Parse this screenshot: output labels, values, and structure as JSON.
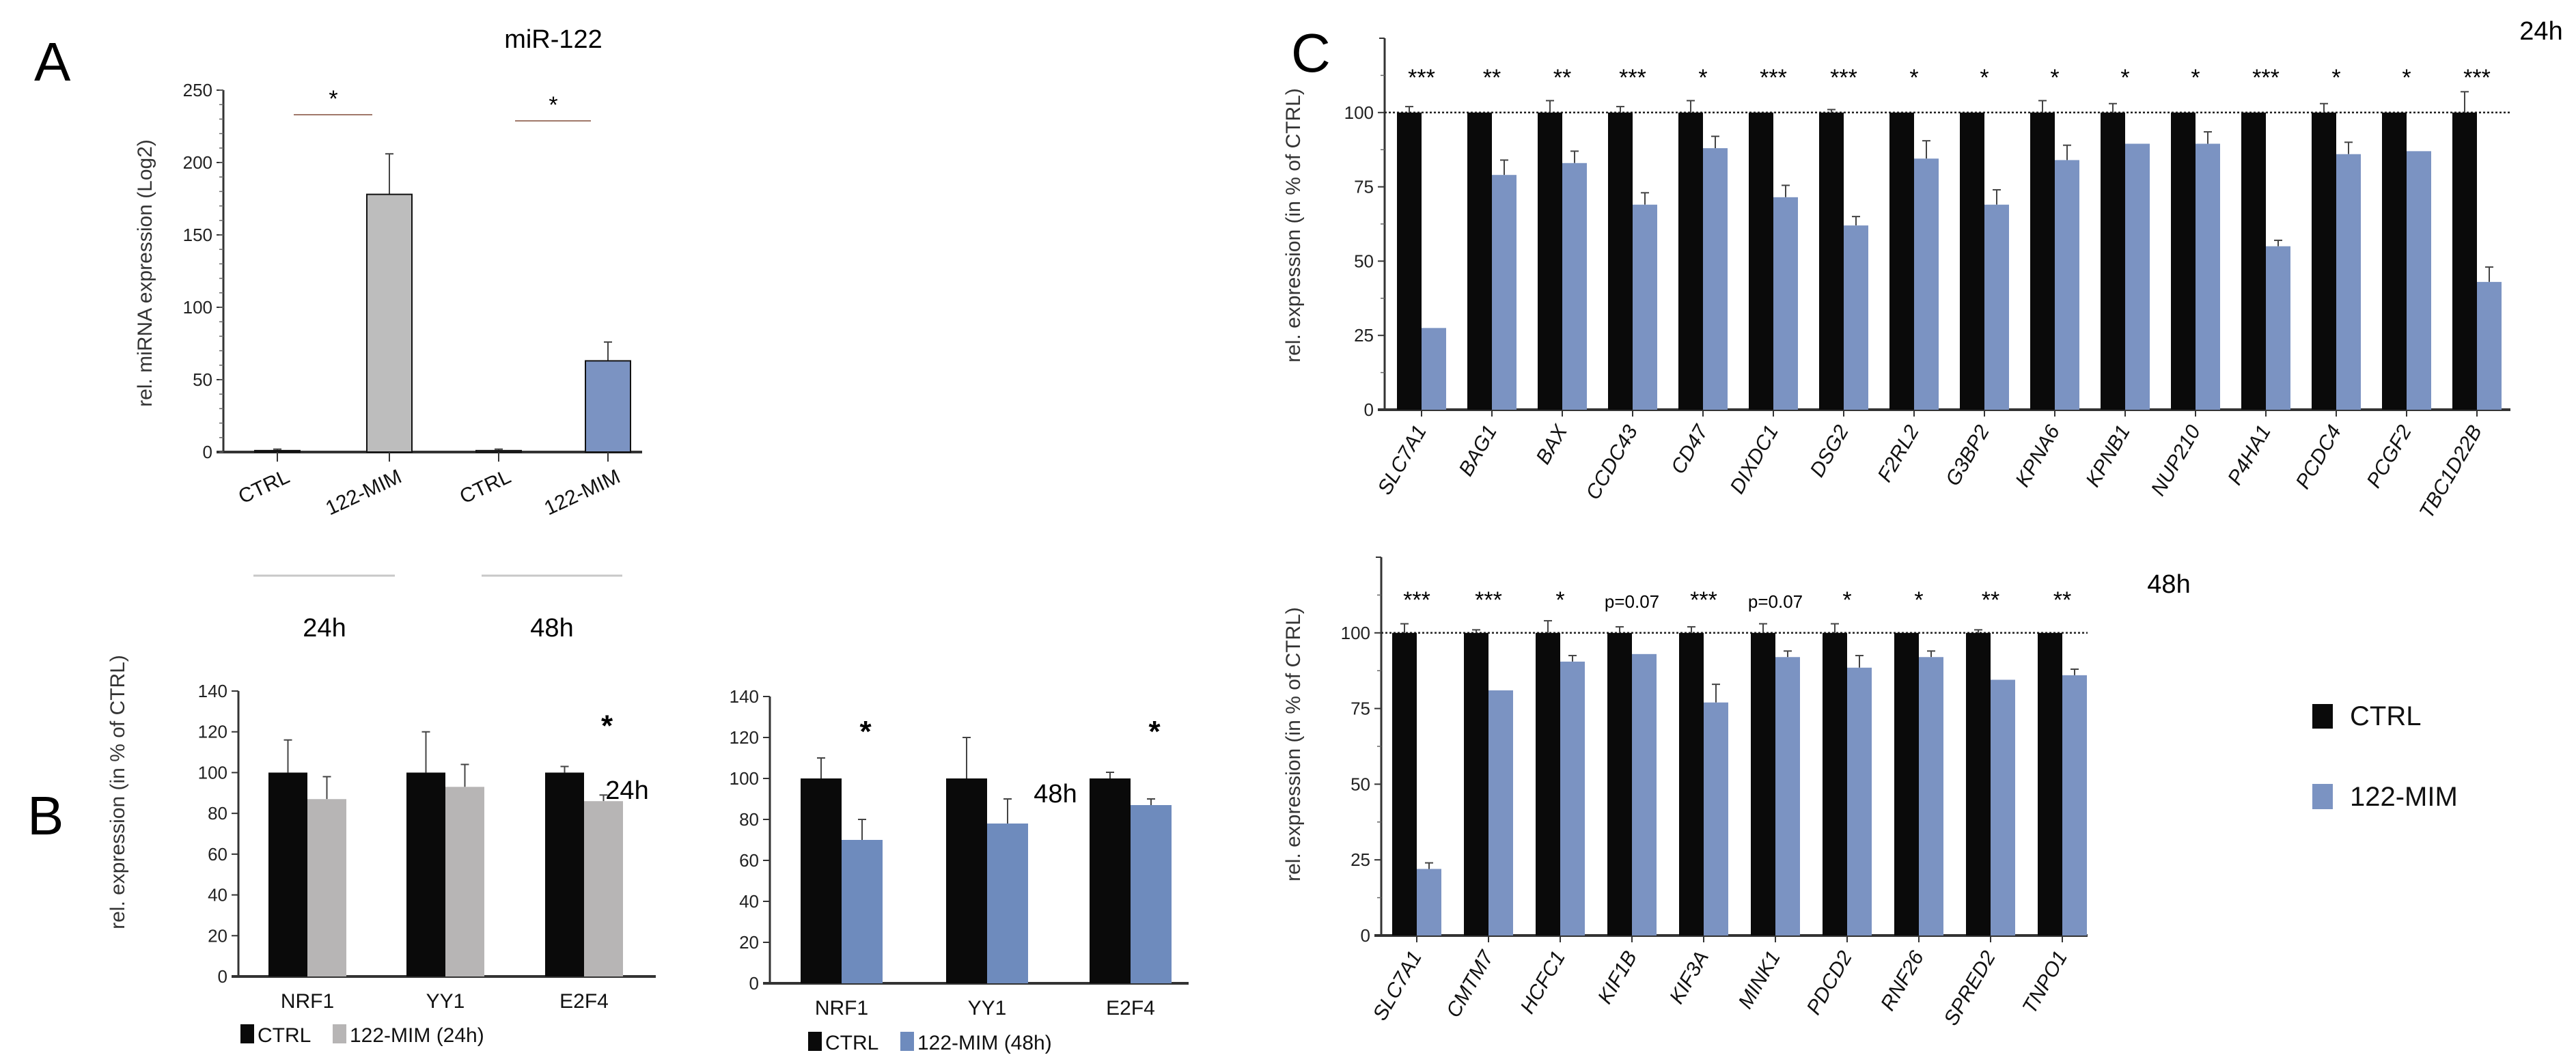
{
  "panels": {
    "a": "A",
    "b": "B",
    "c": "C"
  },
  "panel_a_groups": [
    "24h",
    "48h"
  ],
  "legend_c": {
    "ctrl": "CTRL",
    "mim": "122-MIM"
  },
  "colors": {
    "ctrl": "#0a0a0a",
    "mim_24h_gray": "#b7b5b5",
    "mim_blue": "#7b93c2"
  },
  "chart_data": [
    {
      "id": "A",
      "type": "bar",
      "title": "miR-122",
      "ylabel": "rel. miRNA expression (Log2)",
      "ylim": [
        0,
        250
      ],
      "yticks": [
        0,
        50,
        100,
        150,
        200,
        250
      ],
      "categories": [
        "CTRL",
        "122-MIM",
        "CTRL",
        "122-MIM"
      ],
      "values": [
        1,
        178,
        1,
        63
      ],
      "errors": [
        1,
        28,
        1,
        13
      ],
      "bar_colors": [
        "#0a0a0a",
        "#bdbdbd",
        "#bdbdbd",
        "#7b93c2"
      ],
      "significance": [
        {
          "between": [
            0,
            1
          ],
          "label": "*"
        },
        {
          "between": [
            2,
            3
          ],
          "label": "*"
        }
      ]
    },
    {
      "id": "B-24h",
      "type": "bar",
      "title": "24h",
      "ylabel": "rel. expression (in % of CTRL)",
      "ylim": [
        0,
        140
      ],
      "yticks": [
        0,
        20,
        40,
        60,
        80,
        100,
        120,
        140
      ],
      "categories": [
        "NRF1",
        "YY1",
        "E2F4"
      ],
      "series": [
        {
          "name": "CTRL",
          "values": [
            100,
            100,
            100
          ],
          "errors": [
            16,
            20,
            3
          ],
          "color": "#0a0a0a"
        },
        {
          "name": "122-MIM (24h)",
          "values": [
            87,
            93,
            86
          ],
          "errors": [
            11,
            11,
            3
          ],
          "color": "#b7b5b5"
        }
      ],
      "significance": [
        "",
        "",
        "*"
      ],
      "legend": "bottom"
    },
    {
      "id": "B-48h",
      "type": "bar",
      "title": "48h",
      "ylim": [
        0,
        140
      ],
      "yticks": [
        0,
        20,
        40,
        60,
        80,
        100,
        120,
        140
      ],
      "categories": [
        "NRF1",
        "YY1",
        "E2F4"
      ],
      "series": [
        {
          "name": "CTRL",
          "values": [
            100,
            100,
            100
          ],
          "errors": [
            10,
            20,
            3
          ],
          "color": "#0a0a0a"
        },
        {
          "name": "122-MIM (48h)",
          "values": [
            70,
            78,
            87
          ],
          "errors": [
            10,
            12,
            3
          ],
          "color": "#6e8bbd"
        }
      ],
      "significance": [
        "*",
        "",
        "*"
      ],
      "legend": "bottom"
    },
    {
      "id": "C-24h",
      "type": "bar",
      "title": "24h",
      "ylabel": "rel. expression (in % of CTRL)",
      "ylim": [
        0,
        125
      ],
      "yticks": [
        0,
        25,
        50,
        75,
        100
      ],
      "reference_line": 100,
      "categories": [
        "SLC7A1",
        "BAG1",
        "BAX",
        "CCDC43",
        "CD47",
        "DIXDC1",
        "DSG2",
        "F2RL2",
        "G3BP2",
        "KPNA6",
        "KPNB1",
        "NUP210",
        "P4HA1",
        "PCDC4",
        "PCGF2",
        "TBC1D22B"
      ],
      "series": [
        {
          "name": "CTRL",
          "values": [
            100,
            100,
            100,
            100,
            100,
            100,
            100,
            100,
            100,
            100,
            100,
            100,
            100,
            100,
            100,
            100
          ],
          "errors": [
            2,
            0,
            4,
            2,
            4,
            0,
            1,
            0,
            0,
            4,
            3,
            0,
            0,
            3,
            0,
            7
          ],
          "color": "#0a0a0a"
        },
        {
          "name": "122-MIM",
          "values": [
            27.5,
            79,
            83,
            69,
            88,
            71.5,
            62,
            84.5,
            69,
            84,
            89.5,
            89.5,
            55,
            86,
            87,
            43
          ],
          "errors": [
            0,
            5,
            4,
            4,
            4,
            4,
            3,
            6,
            5,
            5,
            0,
            4,
            2,
            4,
            0,
            5
          ],
          "color": "#7b93c2"
        }
      ],
      "significance": [
        "***",
        "**",
        "**",
        "***",
        "*",
        "***",
        "***",
        "*",
        "*",
        "*",
        "*",
        "*",
        "***",
        "*",
        "*",
        "***"
      ]
    },
    {
      "id": "C-48h",
      "type": "bar",
      "title": "48h",
      "ylabel": "rel. expression (in % of CTRL)",
      "ylim": [
        0,
        125
      ],
      "yticks": [
        0,
        25,
        50,
        75,
        100
      ],
      "reference_line": 100,
      "categories": [
        "SLC7A1",
        "CMTM7",
        "HCFC1",
        "KIF1B",
        "KIF3A",
        "MINK1",
        "PDCD2",
        "RNF26",
        "SPRED2",
        "TNPO1"
      ],
      "series": [
        {
          "name": "CTRL",
          "values": [
            100,
            100,
            100,
            100,
            100,
            100,
            100,
            100,
            100,
            100
          ],
          "errors": [
            3,
            1,
            4,
            2,
            2,
            3,
            3,
            0,
            1,
            0
          ],
          "color": "#0a0a0a"
        },
        {
          "name": "122-MIM",
          "values": [
            22,
            81,
            90.5,
            93,
            77,
            92,
            88.5,
            92,
            84.5,
            86
          ],
          "errors": [
            2,
            0,
            2,
            0,
            6,
            2,
            4,
            2,
            0,
            2
          ],
          "color": "#7b93c2"
        }
      ],
      "significance": [
        "***",
        "***",
        "*",
        "p=0.07",
        "***",
        "p=0.07",
        "*",
        "*",
        "**",
        "**"
      ],
      "legend": "right"
    }
  ]
}
